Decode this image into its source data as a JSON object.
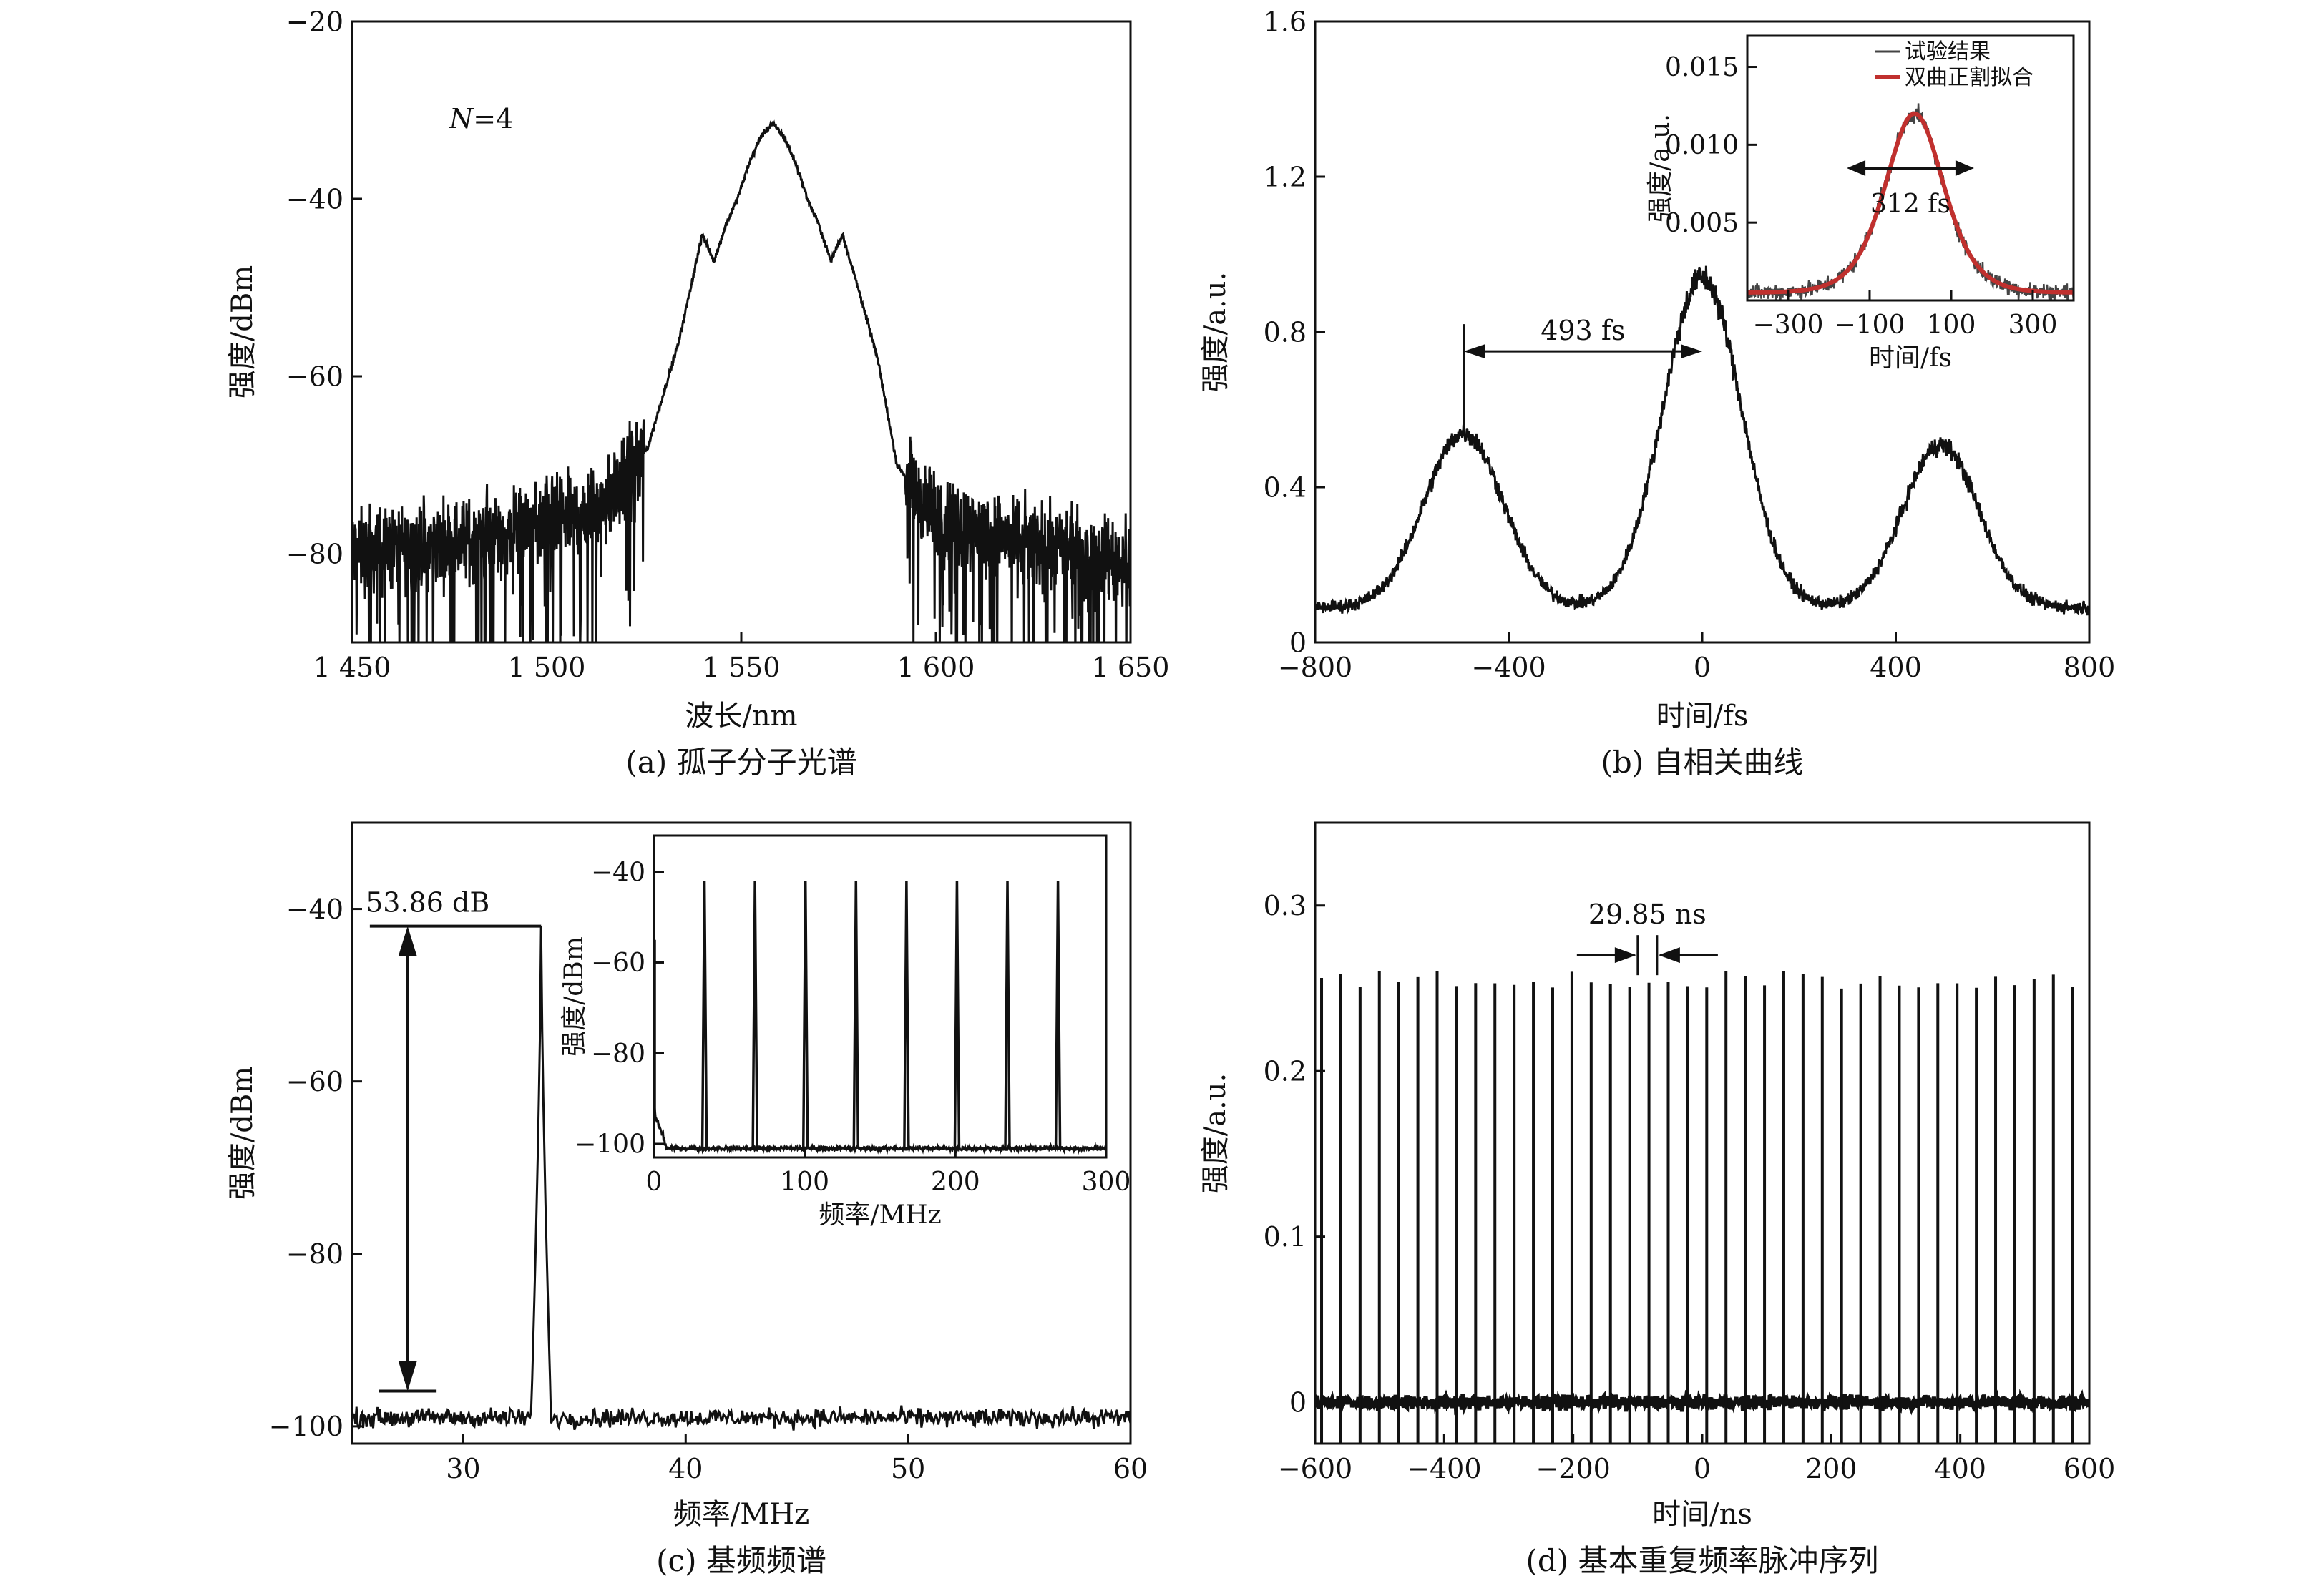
{
  "chart_data": [
    {
      "id": "a",
      "type": "line",
      "caption": "(a) 孤子分子光谱",
      "xlabel": "波长/nm",
      "ylabel": "强度/dBm",
      "xlim": [
        1450,
        1650
      ],
      "ylim": [
        -90,
        -20
      ],
      "xticks": [
        1450,
        1500,
        1550,
        1600,
        1650
      ],
      "xtick_labels": [
        "1 450",
        "1 500",
        "1 550",
        "1 600",
        "1 650"
      ],
      "yticks": [
        -20,
        -40,
        -60,
        -80
      ],
      "ytick_labels": [
        "−20",
        "−40",
        "−60",
        "−80"
      ],
      "annotation": {
        "italic": "N",
        "rest": "=4"
      },
      "series": [
        {
          "x": [
            1450,
            1480,
            1500,
            1512,
            1520,
            1526,
            1530,
            1534,
            1537,
            1540,
            1543,
            1546,
            1549,
            1552,
            1555,
            1558,
            1561,
            1564,
            1567,
            1570,
            1573,
            1576,
            1580,
            1585,
            1590,
            1600,
            1620,
            1650
          ],
          "y": [
            -80,
            -78.5,
            -76.5,
            -75,
            -72,
            -68,
            -62,
            -56,
            -50,
            -44,
            -47,
            -43,
            -40,
            -36,
            -33,
            -31.5,
            -33,
            -36,
            -40,
            -43,
            -47,
            -44,
            -50,
            -58,
            -70,
            -76,
            -78.5,
            -81
          ]
        }
      ],
      "color": "#111111"
    },
    {
      "id": "b",
      "type": "line",
      "caption": "(b) 自相关曲线",
      "xlabel": "时间/fs",
      "ylabel": "强度/a.u.",
      "xlim": [
        -800,
        800
      ],
      "ylim": [
        0,
        1.6
      ],
      "xticks": [
        -800,
        -400,
        0,
        400,
        800
      ],
      "xtick_labels": [
        "−800",
        "−400",
        "0",
        "400",
        "800"
      ],
      "yticks": [
        0,
        0.4,
        0.8,
        1.2,
        1.6
      ],
      "ytick_labels": [
        "0",
        "0.4",
        "0.8",
        "1.2",
        "1.6"
      ],
      "annotation": {
        "text": "493 fs",
        "from": -493,
        "to": 0,
        "y": 0.75
      },
      "peaks": [
        {
          "center": -493,
          "amp": 0.45,
          "width": 115
        },
        {
          "center": 0,
          "amp": 0.85,
          "width": 115
        },
        {
          "center": 493,
          "amp": 0.42,
          "width": 110
        }
      ],
      "baseline": 0.09,
      "color": "#111111",
      "inset": {
        "xlabel": "时间/fs",
        "ylabel": "强度/a.u.",
        "xlim": [
          -400,
          400
        ],
        "ylim": [
          0,
          0.017
        ],
        "xticks": [
          -300,
          -100,
          100,
          300
        ],
        "xtick_labels": [
          "−300",
          "−100",
          "100",
          "300"
        ],
        "yticks": [
          0.005,
          0.01,
          0.015
        ],
        "ytick_labels": [
          "0.005",
          "0.010",
          "0.015"
        ],
        "legend": [
          {
            "name": "试验结果",
            "color": "#444444"
          },
          {
            "name": "双曲正割拟合",
            "color": "#c0302e"
          }
        ],
        "annotation": {
          "text": "312 fs",
          "from": -156,
          "to": 156,
          "y": 0.0085
        },
        "fit": {
          "center": 10,
          "amp": 0.0115,
          "width": 170,
          "baseline": 0.0005
        }
      }
    },
    {
      "id": "c",
      "type": "line",
      "caption": "(c) 基频频谱",
      "xlabel": "频率/MHz",
      "ylabel": "强度/dBm",
      "xlim": [
        25,
        60
      ],
      "ylim": [
        -102,
        -30
      ],
      "xticks": [
        30,
        40,
        50,
        60
      ],
      "xtick_labels": [
        "30",
        "40",
        "50",
        "60"
      ],
      "yticks": [
        -40,
        -60,
        -80,
        -100
      ],
      "ytick_labels": [
        "−40",
        "−60",
        "−80",
        "−100"
      ],
      "annotation": {
        "text": "53.86 dB",
        "x": 27.5,
        "top": -42,
        "bottom": -95.9
      },
      "peak": {
        "x": 33.5,
        "y": -42
      },
      "noise_floor": -99,
      "color": "#111111",
      "inset": {
        "xlabel": "频率/MHz",
        "ylabel": "强度/dBm",
        "xlim": [
          0,
          300
        ],
        "ylim": [
          -103,
          -32
        ],
        "xticks": [
          0,
          100,
          200,
          300
        ],
        "xtick_labels": [
          "0",
          "100",
          "200",
          "300"
        ],
        "yticks": [
          -40,
          -60,
          -80,
          -100
        ],
        "ytick_labels": [
          "−40",
          "−60",
          "−80",
          "−100"
        ],
        "peaks": [
          33.5,
          67,
          100.5,
          134,
          167.5,
          201,
          234.5,
          268
        ],
        "peak_level": -42,
        "noise_floor": -101
      }
    },
    {
      "id": "d",
      "type": "line",
      "caption": "(d) 基本重复频率脉冲序列",
      "xlabel": "时间/ns",
      "ylabel": "强度/a.u.",
      "xlim": [
        -600,
        600
      ],
      "ylim": [
        -0.025,
        0.35
      ],
      "xticks": [
        -600,
        -400,
        -200,
        0,
        200,
        400,
        600
      ],
      "xtick_labels": [
        "−600",
        "−400",
        "−200",
        "0",
        "200",
        "400",
        "600"
      ],
      "yticks": [
        0,
        0.1,
        0.2,
        0.3
      ],
      "ytick_labels": [
        "0",
        "0.1",
        "0.2",
        "0.3"
      ],
      "annotation": {
        "text": "29.85 ns",
        "left": -100,
        "right": -70
      },
      "pulse_period": 29.85,
      "pulse_amp": 0.255,
      "color": "#111111"
    }
  ]
}
